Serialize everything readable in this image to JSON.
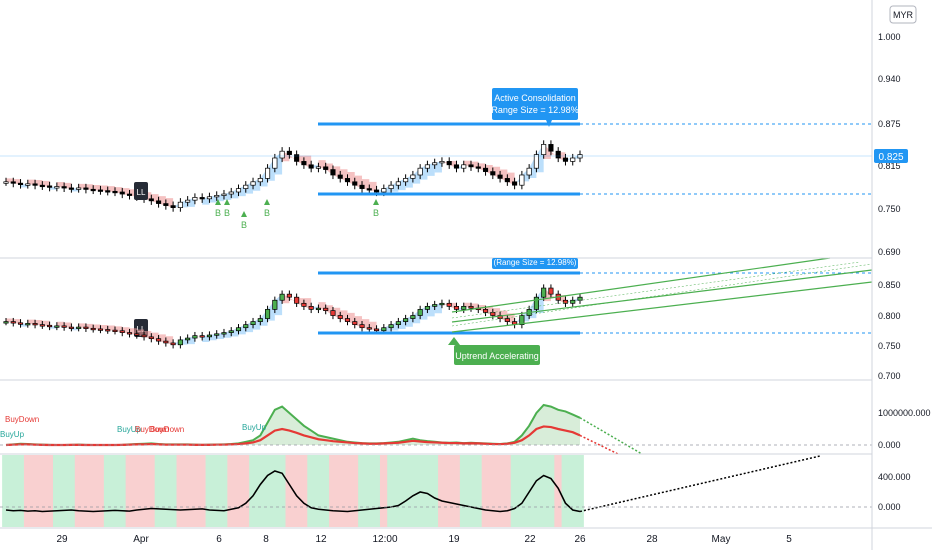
{
  "currency": "MYR",
  "colors": {
    "up": "#26a69a",
    "candle_body": "#000000",
    "ema_fill_up": "#90caf9",
    "ema_fill_down": "#ef9a9a",
    "level_line": "#2196f3",
    "price_tag": "#2196f3",
    "channel": "#4caf50",
    "buy_marker": "#4caf50",
    "volume_up_line": "#4caf50",
    "volume_down_line": "#e53935",
    "osc_line": "#000000",
    "bg_green": "#c8f0d8",
    "bg_red": "#f9d0d0"
  },
  "last_price": "0.825",
  "ll_label": "LL",
  "buy_label": "B",
  "consolidation_label": {
    "line1": "Active Consolidation",
    "line2": "(Range Size = 12.98%)"
  },
  "consolidation_label_pane2": {
    "line1": "(Range Size = 12.98%)"
  },
  "uptrend_label": "Uptrend Accelerating",
  "signal_labels": [
    "BuyUp",
    "BuyUp",
    "BuyUp",
    "BuyDown",
    "BuyDown",
    "BuyDown"
  ],
  "x_axis_labels": [
    "29",
    "Apr",
    "6",
    "8",
    "12",
    "12:00",
    "19",
    "22",
    "26",
    "28",
    "May",
    "5"
  ],
  "chart_data": [
    {
      "type": "candlestick",
      "name": "Pane 1",
      "y_ticks": [
        "1.000",
        "0.940",
        "0.875",
        "0.815",
        "0.750",
        "0.690"
      ],
      "ylim": [
        0.67,
        1.03
      ],
      "consolidation_top": 0.875,
      "consolidation_bottom": 0.765,
      "close": [
        0.79,
        0.788,
        0.786,
        0.787,
        0.785,
        0.784,
        0.782,
        0.783,
        0.781,
        0.78,
        0.781,
        0.779,
        0.778,
        0.777,
        0.776,
        0.775,
        0.772,
        0.77,
        0.768,
        0.765,
        0.762,
        0.758,
        0.755,
        0.752,
        0.76,
        0.763,
        0.767,
        0.765,
        0.768,
        0.77,
        0.772,
        0.775,
        0.78,
        0.785,
        0.79,
        0.795,
        0.81,
        0.825,
        0.835,
        0.83,
        0.82,
        0.815,
        0.81,
        0.812,
        0.808,
        0.8,
        0.795,
        0.79,
        0.785,
        0.78,
        0.778,
        0.775,
        0.78,
        0.785,
        0.79,
        0.795,
        0.8,
        0.81,
        0.815,
        0.818,
        0.82,
        0.815,
        0.81,
        0.815,
        0.812,
        0.81,
        0.805,
        0.8,
        0.795,
        0.79,
        0.785,
        0.8,
        0.81,
        0.83,
        0.845,
        0.835,
        0.825,
        0.82,
        0.825,
        0.83
      ]
    },
    {
      "type": "candlestick",
      "name": "Pane 2",
      "y_ticks": [
        "0.850",
        "0.800",
        "0.750",
        "0.700"
      ],
      "ylim": [
        0.69,
        0.88
      ]
    },
    {
      "type": "line",
      "name": "Volume Oscillator",
      "y_ticks": [
        "1000000.000",
        "0.000"
      ],
      "ylim": [
        -150000,
        1600000
      ],
      "series": [
        {
          "values": [
            0,
            20000,
            40000,
            30000,
            20000,
            10000,
            5000,
            0,
            0,
            5000,
            10000,
            5000,
            0,
            0,
            0,
            0,
            5000,
            20000,
            30000,
            40000,
            50000,
            30000,
            20000,
            20000,
            20000,
            20000,
            10000,
            5000,
            10000,
            15000,
            20000,
            30000,
            50000,
            100000,
            150000,
            300000,
            700000,
            1100000,
            1200000,
            1000000,
            800000,
            600000,
            450000,
            300000,
            250000,
            200000,
            150000,
            100000,
            80000,
            60000,
            50000,
            50000,
            60000,
            80000,
            100000,
            150000,
            200000,
            150000,
            120000,
            100000,
            80000,
            70000,
            80000,
            60000,
            70000,
            60000,
            50000,
            40000,
            30000,
            50000,
            100000,
            300000,
            600000,
            1000000,
            1250000,
            1200000,
            1100000,
            1050000,
            950000,
            850000
          ]
        },
        {
          "values": [
            0,
            10000,
            20000,
            20000,
            10000,
            5000,
            0,
            0,
            0,
            5000,
            5000,
            0,
            0,
            0,
            0,
            0,
            5000,
            10000,
            20000,
            20000,
            30000,
            20000,
            10000,
            10000,
            10000,
            10000,
            5000,
            5000,
            5000,
            10000,
            10000,
            20000,
            30000,
            50000,
            80000,
            150000,
            300000,
            450000,
            500000,
            450000,
            380000,
            300000,
            240000,
            180000,
            150000,
            120000,
            100000,
            80000,
            60000,
            50000,
            40000,
            40000,
            50000,
            60000,
            70000,
            100000,
            130000,
            110000,
            90000,
            80000,
            70000,
            60000,
            60000,
            50000,
            55000,
            50000,
            40000,
            30000,
            25000,
            40000,
            70000,
            150000,
            300000,
            500000,
            580000,
            560000,
            500000,
            450000,
            400000,
            300000
          ]
        }
      ]
    },
    {
      "type": "line",
      "name": "Oscillator",
      "y_ticks": [
        "400.000",
        "0.000"
      ],
      "ylim": [
        -200,
        650
      ],
      "series": [
        {
          "values": [
            -40,
            -50,
            -45,
            -55,
            -50,
            -60,
            -55,
            -50,
            -45,
            -40,
            -50,
            -55,
            -60,
            -55,
            -50,
            -45,
            -50,
            -55,
            -40,
            -30,
            -20,
            -25,
            -30,
            -35,
            -40,
            -35,
            -30,
            -25,
            -40,
            -45,
            -50,
            -30,
            -10,
            50,
            150,
            300,
            420,
            480,
            450,
            300,
            150,
            50,
            -10,
            -30,
            -40,
            -50,
            -55,
            -60,
            -50,
            -40,
            -30,
            -20,
            -10,
            0,
            20,
            80,
            150,
            200,
            180,
            120,
            80,
            60,
            40,
            20,
            0,
            -20,
            -40,
            -50,
            -60,
            -50,
            -20,
            50,
            200,
            350,
            420,
            380,
            250,
            50,
            -40,
            -60
          ]
        }
      ]
    }
  ]
}
